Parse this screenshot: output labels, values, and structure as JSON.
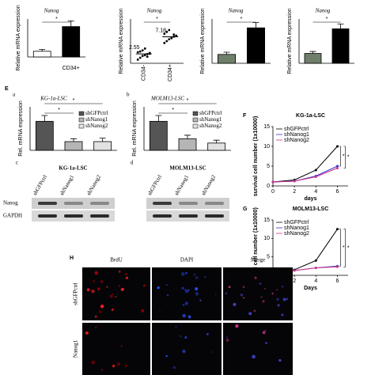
{
  "panel_e": "E",
  "chart_data": [
    {
      "type": "bar",
      "title": "Nanog",
      "ylabel": "Relative mRNA expression",
      "categories": [
        null,
        "CD34+"
      ],
      "values": [
        1.5,
        8
      ],
      "errors": [
        0.5,
        1.5
      ],
      "colors": [
        "#ffffff",
        "#000000"
      ],
      "ylim": [
        0,
        10
      ],
      "annotations": [
        "*"
      ]
    },
    {
      "type": "dot",
      "title": "Nanog",
      "ylabel": "Relative mRNA expression",
      "categories": [
        "CD34-",
        "CD34+"
      ],
      "values": [
        2.55,
        7.18
      ],
      "points": [
        [
          1,
          1.5,
          2,
          2.2,
          2.5,
          2.8,
          3,
          3.2,
          3.5,
          4,
          1.8,
          2.6
        ],
        [
          5.5,
          6,
          6.5,
          7,
          7.2,
          7.5,
          8,
          8.5,
          9,
          6.8,
          7.8,
          7.4
        ]
      ],
      "ylim": [
        0,
        12
      ],
      "annotations": [
        "*"
      ]
    },
    {
      "type": "bar",
      "title": "Nanog",
      "ylabel": "Relative mRNA expression",
      "categories": [
        null,
        null
      ],
      "values": [
        1,
        4
      ],
      "errors": [
        0.25,
        0.6
      ],
      "colors": [
        "#6f7f6a",
        "#000000"
      ],
      "ylim": [
        0,
        5
      ],
      "annotations": [
        "*"
      ]
    },
    {
      "type": "bar",
      "title": "Nanog",
      "ylabel": "Relative mRNA expression",
      "categories": [
        null,
        null
      ],
      "values": [
        1,
        3.5
      ],
      "errors": [
        0.2,
        0.5
      ],
      "colors": [
        "#6f7f6a",
        "#000000"
      ],
      "ylim": [
        0,
        4.5
      ],
      "annotations": [
        "*"
      ]
    },
    {
      "type": "bar",
      "letter": "a",
      "title": "KG-1a-LSC",
      "ylabel": "Rel. mRNA expression",
      "categories": [
        "shGFPctrl",
        "shNanog1",
        "shNanog2"
      ],
      "legend": true,
      "values": [
        1.0,
        0.3,
        0.3
      ],
      "errors": [
        0.2,
        0.1,
        0.12
      ],
      "colors": [
        "#555555",
        "#b5b5b5",
        "#e2e2e2"
      ],
      "ylim": [
        0,
        1.5
      ],
      "annotations": [
        "*",
        "*"
      ]
    },
    {
      "type": "bar",
      "letter": "b",
      "title": "MOLM13-LSC",
      "ylabel": "Rel. mRNA expression",
      "categories": [
        "shGFPctrl",
        "shNanog1",
        "shNanog2"
      ],
      "legend": true,
      "values": [
        1.0,
        0.4,
        0.25
      ],
      "errors": [
        0.2,
        0.12,
        0.1
      ],
      "colors": [
        "#555555",
        "#b5b5b5",
        "#e2e2e2"
      ],
      "ylim": [
        0,
        1.5
      ],
      "annotations": [
        "*",
        "*"
      ]
    },
    {
      "type": "line",
      "letter": "F",
      "title": "KG-1a-LSC",
      "xlabel": "days",
      "ylabel": "survival cell number (1x10000)",
      "x": [
        0,
        2,
        4,
        6
      ],
      "xlim": [
        0,
        7
      ],
      "xticks": [
        0,
        2,
        4,
        6
      ],
      "ylim": [
        0,
        15
      ],
      "yticks": [
        0,
        5,
        10,
        15
      ],
      "legend": "upper left",
      "series": [
        {
          "name": "shGFPctrl",
          "color": "#000000",
          "values": [
            1,
            1.5,
            4,
            10
          ]
        },
        {
          "name": "shNanog1",
          "color": "#3030d0",
          "values": [
            1,
            1.2,
            2.5,
            5
          ]
        },
        {
          "name": "shNanog2",
          "color": "#d0308a",
          "values": [
            1,
            1.2,
            2.3,
            4.5
          ]
        }
      ],
      "annotations": [
        "*",
        "*"
      ]
    },
    {
      "type": "line",
      "letter": "G",
      "title": "MOLM13-LSC",
      "xlabel": "Days",
      "ylabel": "survival cell number (1x10000)",
      "x": [
        0,
        2,
        4,
        6
      ],
      "xlim": [
        0,
        7
      ],
      "xticks": [
        0,
        2,
        4,
        6
      ],
      "ylim": [
        0,
        15
      ],
      "yticks": [
        0,
        5,
        10,
        15
      ],
      "legend": "upper left",
      "series": [
        {
          "name": "shGFPctrl",
          "color": "#000000",
          "values": [
            1,
            1.5,
            4,
            12.5
          ]
        },
        {
          "name": "shNanog1",
          "color": "#3030d0",
          "values": [
            1,
            1.3,
            2,
            2.5
          ]
        },
        {
          "name": "shNanog2",
          "color": "#d0308a",
          "values": [
            1,
            1.3,
            2,
            2.3
          ]
        }
      ],
      "annotations": [
        "*",
        "*"
      ]
    }
  ],
  "blots": [
    {
      "letter": "c",
      "title": "KG-1a-LSC",
      "lanes": [
        "shGFPctrl",
        "shNanog1",
        "shNanog2"
      ],
      "rows": [
        "Nanog",
        "GAPDH"
      ]
    },
    {
      "letter": "d",
      "title": "MOLM13-LSC",
      "lanes": [
        "shGFPctrl",
        "shNanog1",
        "shNanog2"
      ]
    }
  ],
  "microscopy": {
    "letter": "H",
    "columns": [
      "BrdU",
      "DAPI",
      "Merge"
    ],
    "rows": [
      "shGFPctrl",
      "Nanog1"
    ]
  }
}
